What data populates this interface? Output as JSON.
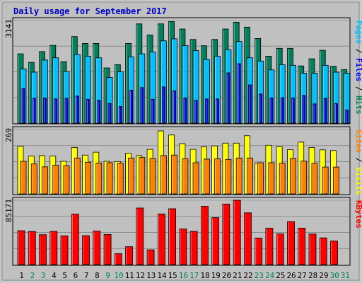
{
  "chart_data": {
    "type": "bar",
    "title": "Daily usage for September 2017",
    "categories": [
      "1",
      "2",
      "3",
      "4",
      "5",
      "6",
      "7",
      "8",
      "9",
      "10",
      "11",
      "12",
      "13",
      "14",
      "15",
      "16",
      "17",
      "18",
      "19",
      "20",
      "21",
      "22",
      "23",
      "24",
      "25",
      "26",
      "27",
      "28",
      "29",
      "30",
      "31"
    ],
    "weekend_days": [
      "2",
      "3",
      "9",
      "10",
      "16",
      "17",
      "23",
      "24",
      "30",
      "31"
    ],
    "panels": [
      {
        "id": "hits-files-pages",
        "ymax_label": "3141",
        "ymax": 3141,
        "legend": [
          {
            "text": "Pages",
            "color": "#00c0ff"
          },
          {
            "text": " / ",
            "color": "#000000"
          },
          {
            "text": "Files",
            "color": "#0000ff"
          },
          {
            "text": " / ",
            "color": "#000000"
          },
          {
            "text": "Hits",
            "color": "#00805c"
          }
        ],
        "series": [
          {
            "name": "Hits",
            "color": "#00805c",
            "values": [
              2120,
              1860,
              2190,
              2380,
              1880,
              2650,
              2440,
              2440,
              1690,
              1790,
              2440,
              3040,
              2700,
              3040,
              3110,
              2880,
              2560,
              2370,
              2560,
              2880,
              3090,
              2940,
              2590,
              2050,
              2290,
              2290,
              1750,
              1970,
              2230,
              1740,
              1640
            ]
          },
          {
            "name": "Pages",
            "color": "#00c0ff",
            "values": [
              1660,
              1560,
              1930,
              2000,
              1580,
              2100,
              2050,
              2000,
              1400,
              1570,
              2030,
              2120,
              2180,
              2520,
              2580,
              2370,
              2220,
              1950,
              2050,
              2250,
              2500,
              2000,
              1900,
              1630,
              1790,
              1770,
              1530,
              1530,
              1770,
              1560,
              1530
            ]
          },
          {
            "name": "Files",
            "color": "#0000ff",
            "values": [
              1060,
              760,
              770,
              740,
              760,
              830,
              730,
              700,
              600,
              510,
              1010,
              1090,
              730,
              1110,
              990,
              770,
              700,
              740,
              740,
              1540,
              1820,
              1170,
              890,
              770,
              780,
              770,
              850,
              590,
              760,
              600,
              400
            ]
          }
        ]
      },
      {
        "id": "visits-sites",
        "ymax_label": "269",
        "ymax": 269,
        "legend": [
          {
            "text": "Sites",
            "color": "#ff8000"
          },
          {
            "text": " / ",
            "color": "#000000"
          },
          {
            "text": "Visits",
            "color": "#ffff00"
          }
        ],
        "series": [
          {
            "name": "Visits",
            "color": "#ffff00",
            "values": [
              198,
              158,
              160,
              158,
              136,
              194,
              162,
              174,
              136,
              135,
              170,
              160,
              186,
              263,
              246,
              210,
              186,
              196,
              200,
              212,
              212,
              243,
              128,
              203,
              197,
              185,
              216,
              194,
              184,
              181,
              0
            ]
          },
          {
            "name": "Sites",
            "color": "#ff8000",
            "values": [
              136,
              125,
              113,
              120,
              118,
              150,
              132,
              129,
              130,
              128,
              150,
              152,
              148,
              160,
              162,
              147,
              130,
              145,
              146,
              144,
              150,
              150,
              130,
              130,
              128,
              148,
              137,
              128,
              112,
              112,
              0
            ]
          }
        ]
      },
      {
        "id": "kbytes",
        "ymax_label": "85171",
        "ymax": 85171,
        "legend": [
          {
            "text": "KBytes",
            "color": "#ff0000"
          }
        ],
        "series": [
          {
            "name": "KBytes",
            "color": "#ff0000",
            "values": [
              44800,
              43800,
              39600,
              44000,
              38000,
              66800,
              38300,
              44400,
              39900,
              14400,
              23700,
              74900,
              19600,
              67000,
              73900,
              47200,
              44000,
              77200,
              62100,
              80000,
              85171,
              68500,
              35200,
              48200,
              40600,
              56800,
              48300,
              40400,
              35400,
              31200,
              0
            ]
          }
        ]
      }
    ]
  }
}
